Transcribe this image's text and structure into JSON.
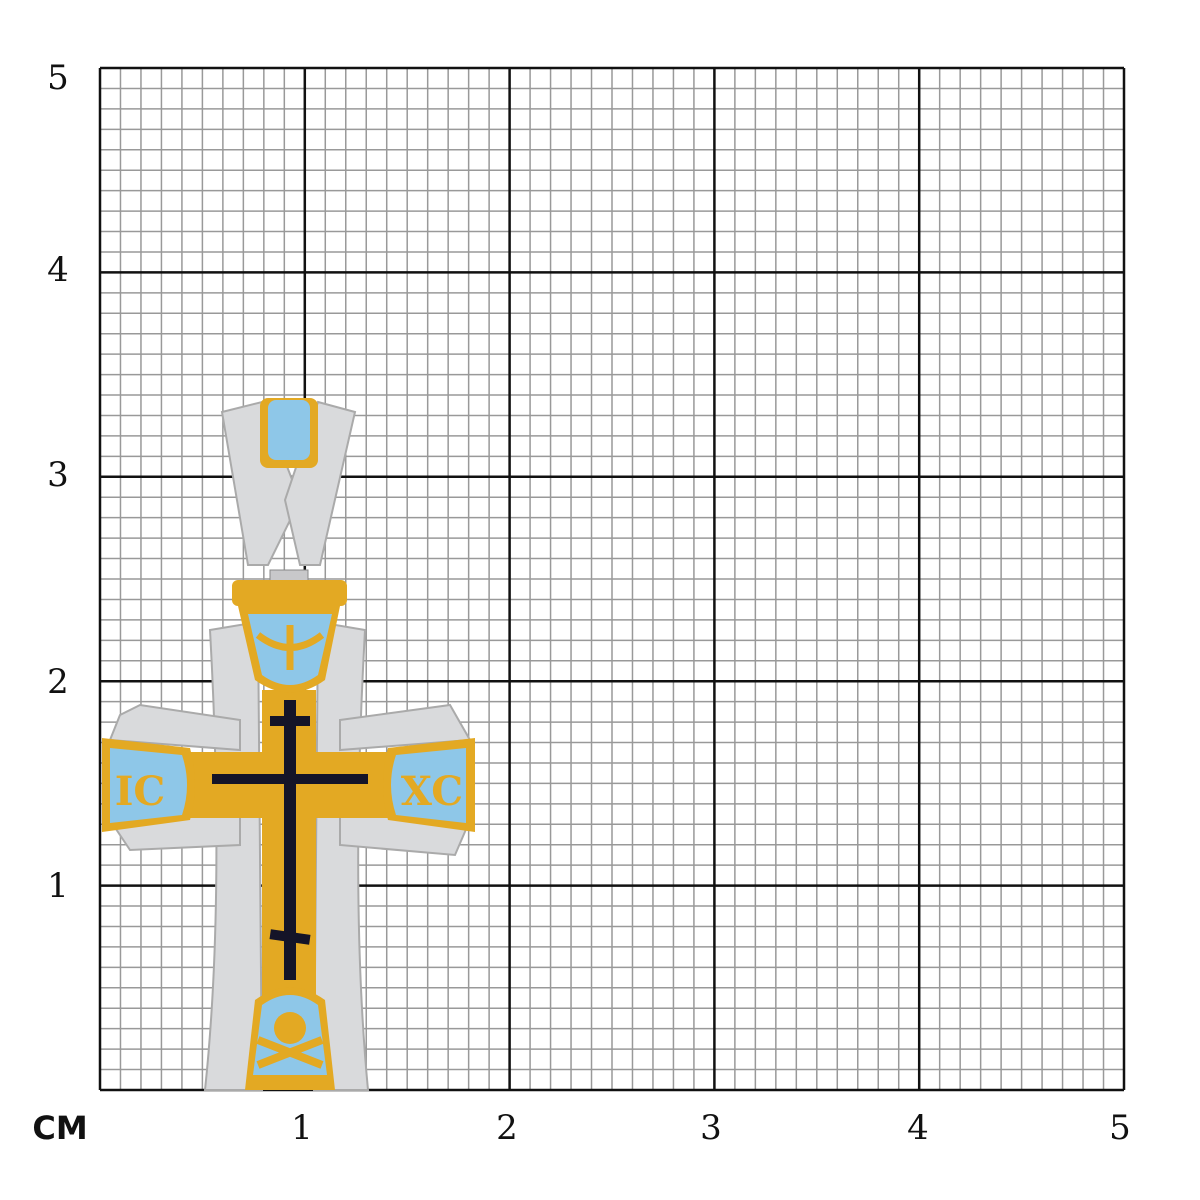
{
  "unit_label": "СМ",
  "x_axis_labels": [
    "1",
    "2",
    "3",
    "4",
    "5"
  ],
  "y_axis_labels": [
    "1",
    "2",
    "3",
    "4",
    "5"
  ],
  "grid": {
    "range_cm": 5,
    "minor_per_cm": 10,
    "major_color": "#111111",
    "minor_color": "#999999"
  },
  "pendant": {
    "inscription_left": "IC",
    "inscription_right": "XC",
    "colors": {
      "gold": "#e3a923",
      "enamel": "#8ec7e8",
      "silver": "#d9dadc",
      "black": "#141428"
    }
  }
}
